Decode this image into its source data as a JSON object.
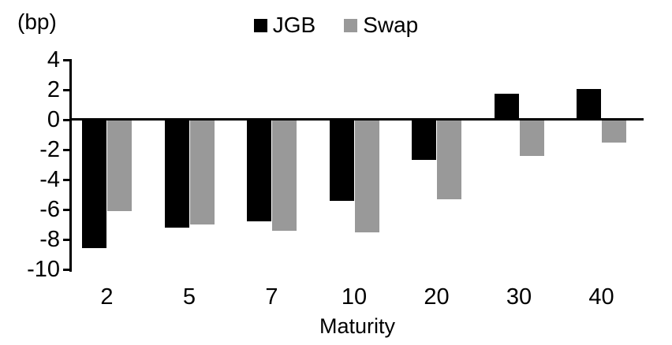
{
  "chart_data": {
    "type": "bar",
    "title": "",
    "categories": [
      "2",
      "5",
      "7",
      "10",
      "20",
      "30",
      "40"
    ],
    "series": [
      {
        "name": "JGB",
        "color": "#000000",
        "values": [
          -8.6,
          -7.2,
          -6.8,
          -5.4,
          -2.7,
          1.7,
          2.0
        ]
      },
      {
        "name": "Swap",
        "color": "#999999",
        "values": [
          -6.1,
          -7.0,
          -7.4,
          -7.5,
          -5.3,
          -2.4,
          -1.5
        ]
      }
    ],
    "xlabel": "Maturity",
    "ylabel": "(bp)",
    "yticks": [
      4,
      2,
      0,
      -2,
      -4,
      -6,
      -8,
      -10
    ],
    "ylim": [
      -10,
      4
    ],
    "grid": false,
    "legend_position": "top-center",
    "axis_color": "#000000",
    "background_color": "#ffffff"
  }
}
